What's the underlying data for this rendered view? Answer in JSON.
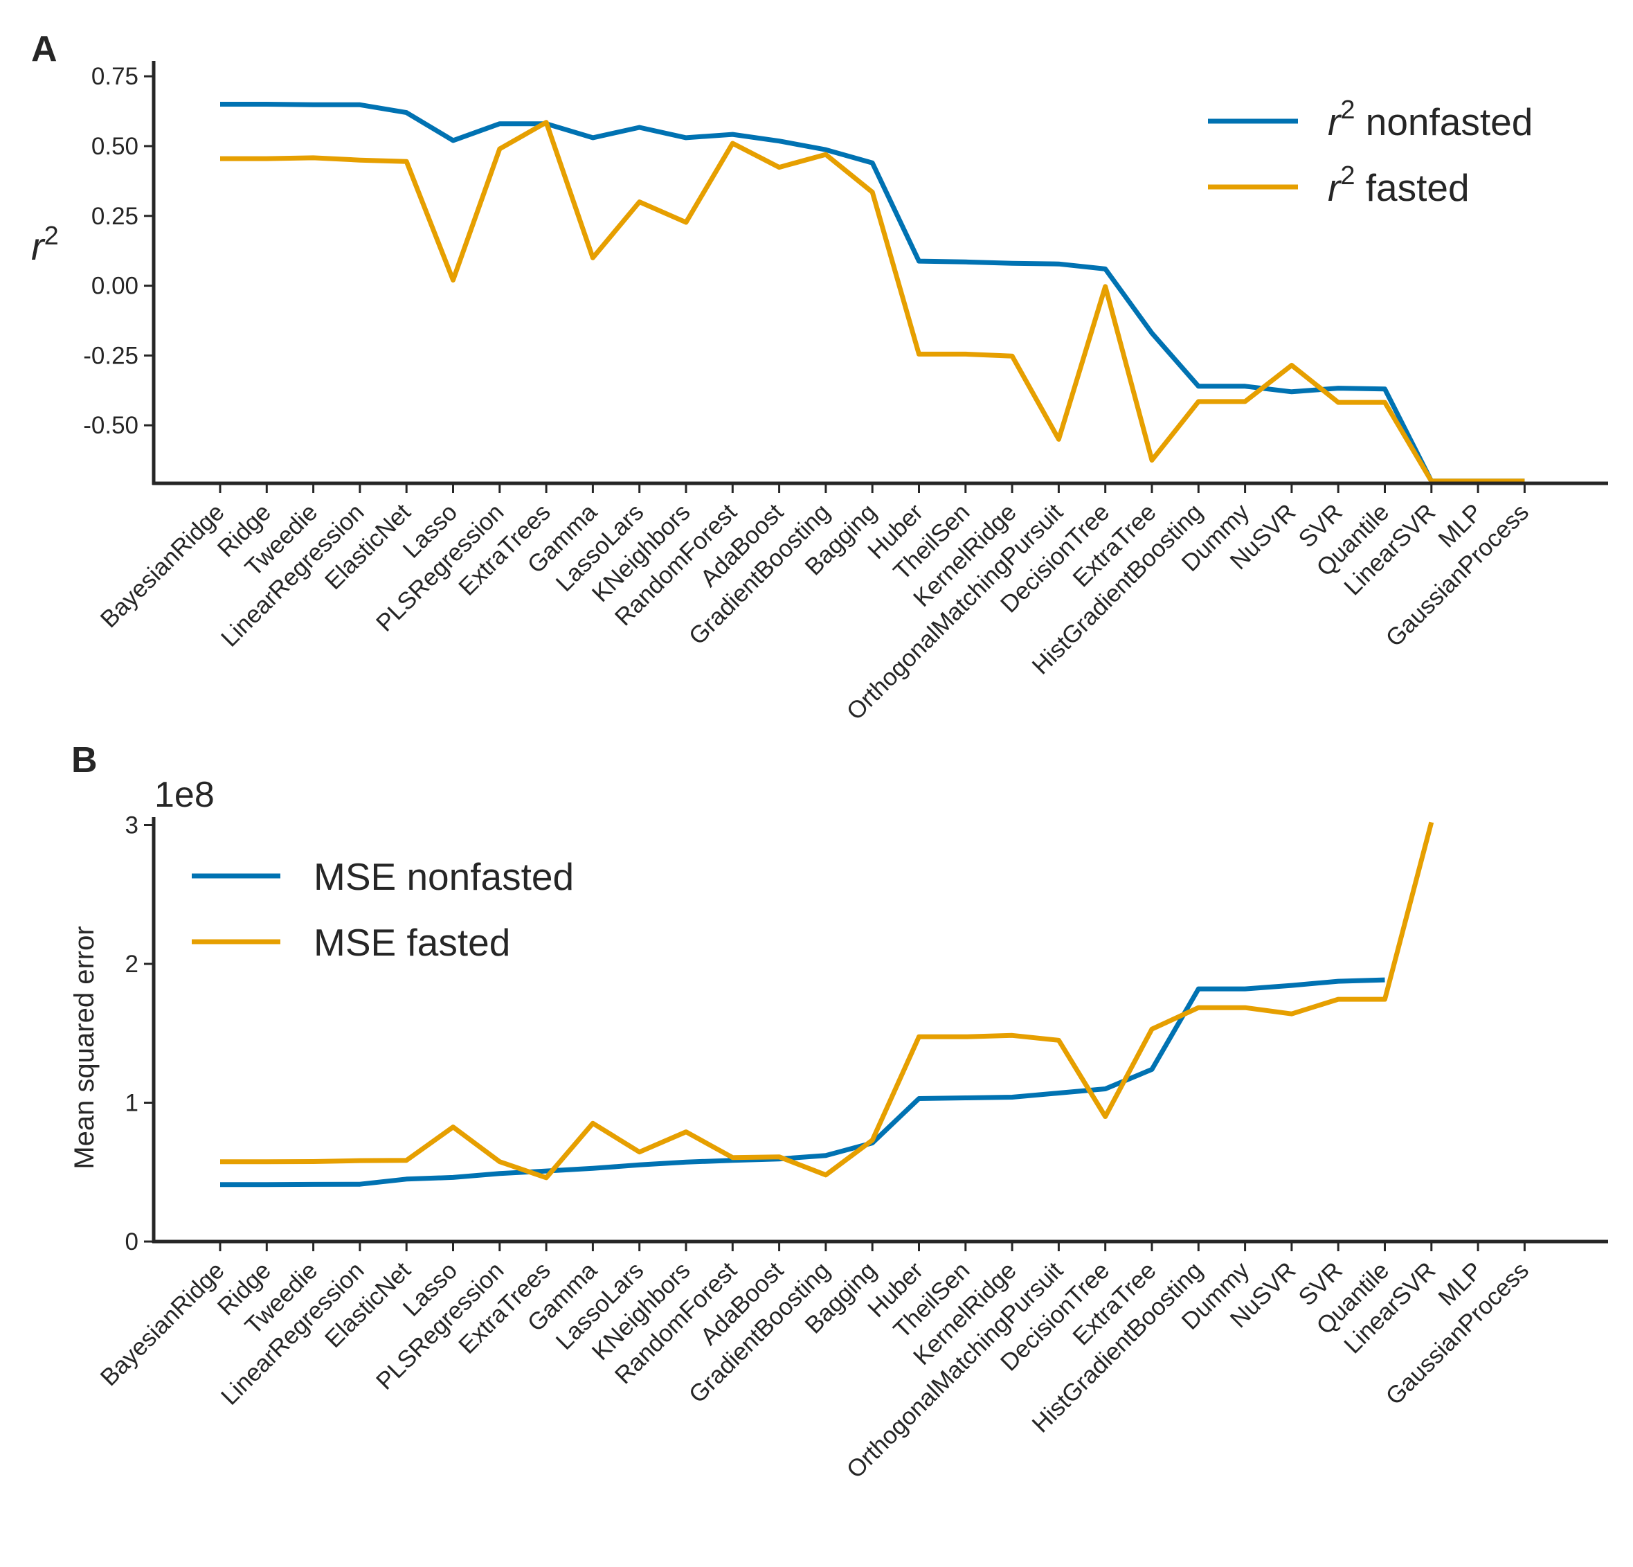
{
  "colors": {
    "nonfasted": "#0072B2",
    "fasted": "#E69F00",
    "axis": "#262626"
  },
  "categories": [
    "BayesianRidge",
    "Ridge",
    "Tweedie",
    "LinearRegression",
    "ElasticNet",
    "Lasso",
    "PLSRegression",
    "ExtraTrees",
    "Gamma",
    "LassoLars",
    "KNeighbors",
    "RandomForest",
    "AdaBoost",
    "GradientBoosting",
    "Bagging",
    "Huber",
    "TheilSen",
    "KernelRidge",
    "OrthogonalMatchingPursuit",
    "DecisionTree",
    "ExtraTree",
    "HistGradientBoosting",
    "Dummy",
    "NuSVR",
    "SVR",
    "Quantile",
    "LinearSVR",
    "MLP",
    "GaussianProcess"
  ],
  "chart_data": [
    {
      "panel": "A",
      "type": "line",
      "ylabel_base": "r",
      "ylabel_exp": "2",
      "xlabel": "",
      "ylim": [
        -0.7,
        0.8
      ],
      "yticks": [
        0.75,
        0.5,
        0.25,
        0.0,
        -0.25,
        -0.5
      ],
      "ytick_labels": [
        "0.75",
        "0.50",
        "0.25",
        "0.00",
        "-0.25",
        "-0.50"
      ],
      "legend_position": "top-right",
      "series": [
        {
          "key": "nonfasted",
          "name_base": "r",
          "name_exp": "2",
          "name_rest": " nonfasted",
          "values": [
            0.65,
            0.65,
            0.648,
            0.648,
            0.62,
            0.52,
            0.58,
            0.58,
            0.53,
            0.567,
            0.53,
            0.542,
            0.518,
            0.487,
            0.44,
            0.088,
            0.085,
            0.08,
            0.078,
            0.06,
            -0.17,
            -0.36,
            -0.36,
            -0.38,
            -0.367,
            -0.37,
            -0.7,
            -0.7,
            -0.7
          ]
        },
        {
          "key": "fasted",
          "name_base": "r",
          "name_exp": "2",
          "name_rest": " fasted",
          "values": [
            0.455,
            0.455,
            0.458,
            0.45,
            0.445,
            0.02,
            0.49,
            0.585,
            0.1,
            0.3,
            0.227,
            0.51,
            0.424,
            0.47,
            0.335,
            -0.245,
            -0.245,
            -0.252,
            -0.55,
            -0.003,
            -0.625,
            -0.415,
            -0.415,
            -0.285,
            -0.418,
            -0.418,
            -0.7,
            -0.7,
            -0.7
          ]
        }
      ]
    },
    {
      "panel": "B",
      "type": "line",
      "ylabel": "Mean squared error",
      "xlabel": "",
      "offset_label": "1e8",
      "ylim": [
        0,
        3
      ],
      "yticks": [
        0,
        1,
        2,
        3
      ],
      "ytick_labels": [
        "0",
        "1",
        "2",
        "3"
      ],
      "legend_position": "top-left",
      "series": [
        {
          "key": "nonfasted",
          "name": "MSE nonfasted",
          "values": [
            0.41,
            0.41,
            0.412,
            0.413,
            0.45,
            0.462,
            0.49,
            0.508,
            0.527,
            0.552,
            0.572,
            0.585,
            0.595,
            0.62,
            0.71,
            1.03,
            1.035,
            1.04,
            1.07,
            1.1,
            1.24,
            1.82,
            1.82,
            1.845,
            1.875,
            1.885,
            null,
            null,
            null
          ]
        },
        {
          "key": "fasted",
          "name": "MSE fasted",
          "values": [
            0.575,
            0.575,
            0.576,
            0.583,
            0.585,
            0.825,
            0.575,
            0.46,
            0.852,
            0.645,
            0.79,
            0.605,
            0.61,
            0.48,
            0.73,
            1.475,
            1.475,
            1.485,
            1.45,
            0.9,
            1.53,
            1.685,
            1.685,
            1.64,
            1.745,
            1.745,
            3.02,
            null,
            null
          ]
        }
      ]
    }
  ]
}
